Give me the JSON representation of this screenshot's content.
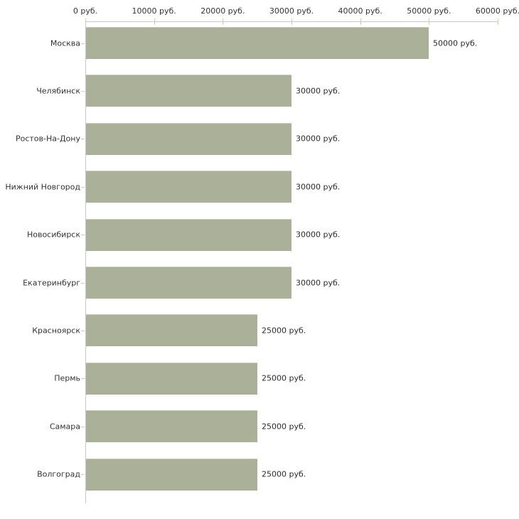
{
  "chart_data": {
    "type": "bar",
    "orientation": "horizontal",
    "title": "",
    "categories": [
      "Москва",
      "Челябинск",
      "Ростов-На-Дону",
      "Нижний Новгород",
      "Новосибирск",
      "Екатеринбург",
      "Красноярск",
      "Пермь",
      "Самара",
      "Волгоград"
    ],
    "values": [
      50000,
      30000,
      30000,
      30000,
      30000,
      30000,
      25000,
      25000,
      25000,
      25000
    ],
    "value_labels": [
      "50000 руб.",
      "30000 руб.",
      "30000 руб.",
      "30000 руб.",
      "30000 руб.",
      "30000 руб.",
      "25000 руб.",
      "25000 руб.",
      "25000 руб.",
      "25000 руб."
    ],
    "x_ticks": [
      0,
      10000,
      20000,
      30000,
      40000,
      50000,
      60000
    ],
    "x_tick_labels": [
      "0 руб.",
      "10000 руб.",
      "20000 руб.",
      "30000 руб.",
      "40000 руб.",
      "50000 руб.",
      "60000 руб."
    ],
    "xlim": [
      0,
      60000
    ],
    "unit": "руб.",
    "xlabel": "",
    "ylabel": "",
    "grid": false,
    "legend": false,
    "colors": {
      "bar": "#abb199",
      "bar_edge": "#c6cbb5",
      "axis": "#c9c9c9",
      "tick": "#cfcfae",
      "text": "#333333",
      "background": "#ffffff"
    }
  }
}
